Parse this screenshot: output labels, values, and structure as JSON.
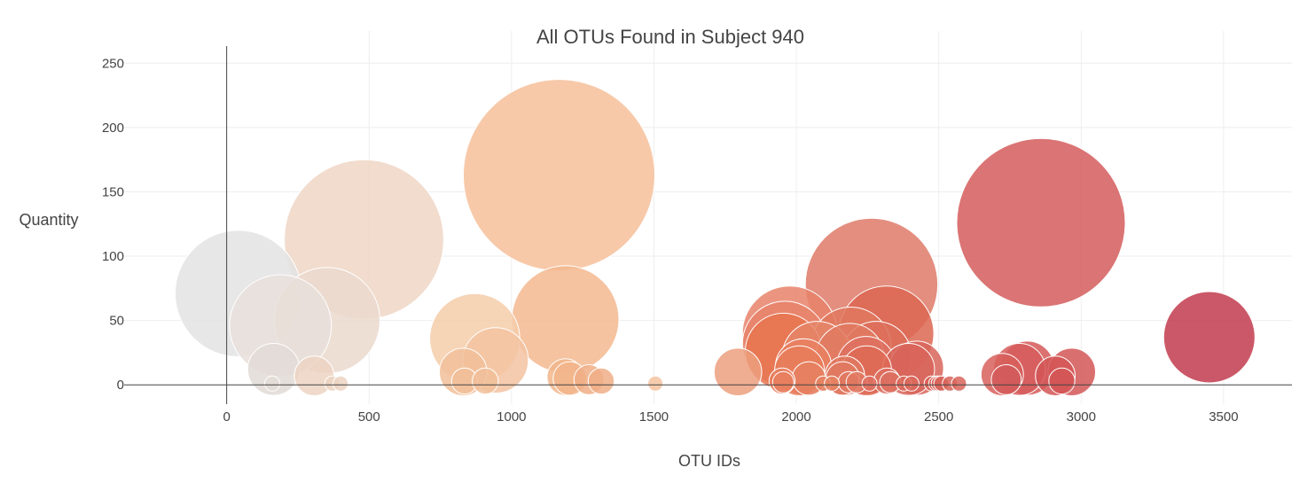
{
  "chart_data": {
    "type": "scatter",
    "title": "All OTUs Found in Subject 940",
    "xlabel": "OTU IDs",
    "ylabel": "Quantity",
    "xlim": [
      -360,
      3740
    ],
    "ylim": [
      -15,
      275
    ],
    "x_ticks": [
      0,
      500,
      1000,
      1500,
      2000,
      2500,
      3000,
      3500
    ],
    "y_ticks": [
      0,
      50,
      100,
      150,
      200,
      250
    ],
    "grid": true,
    "legend": "none",
    "size_note": "bubble size proportional to quantity",
    "colorscale": [
      "#e6e6e6",
      "#f1d2be",
      "#f6b890",
      "#e88a6e",
      "#d85c5c",
      "#c23a4d"
    ],
    "points": [
      {
        "x": 41,
        "y": 71,
        "color": "#e3e3e3"
      },
      {
        "x": 189,
        "y": 46,
        "color": "#e8dfdb"
      },
      {
        "x": 352,
        "y": 50,
        "color": "#ebd9ce"
      },
      {
        "x": 482,
        "y": 113,
        "color": "#efd6c4"
      },
      {
        "x": 1167,
        "y": 163,
        "color": "#f6bf9a"
      },
      {
        "x": 871,
        "y": 36,
        "color": "#f4cca9"
      },
      {
        "x": 944,
        "y": 19,
        "color": "#f3c3a1"
      },
      {
        "x": 1189,
        "y": 51,
        "color": "#f3b98f"
      },
      {
        "x": 2264,
        "y": 78,
        "color": "#de7a68"
      },
      {
        "x": 2859,
        "y": 126,
        "color": "#d55c5c"
      },
      {
        "x": 3450,
        "y": 37,
        "color": "#c23b4e"
      },
      {
        "x": 1977,
        "y": 40,
        "color": "#e8826a"
      },
      {
        "x": 1960,
        "y": 32,
        "color": "#e8826a"
      },
      {
        "x": 1955,
        "y": 26,
        "color": "#e8744f"
      },
      {
        "x": 2316,
        "y": 40,
        "color": "#dc6651"
      },
      {
        "x": 2191,
        "y": 29,
        "color": "#e0785e"
      },
      {
        "x": 2188,
        "y": 21,
        "color": "#e07a60"
      },
      {
        "x": 2281,
        "y": 22,
        "color": "#dc6f5b"
      },
      {
        "x": 2074,
        "y": 22,
        "color": "#e58568"
      },
      {
        "x": 2025,
        "y": 14,
        "color": "#e88060"
      },
      {
        "x": 2245,
        "y": 15,
        "color": "#de7060"
      },
      {
        "x": 2247,
        "y": 11,
        "color": "#de6a55"
      },
      {
        "x": 2394,
        "y": 12,
        "color": "#d8655a"
      },
      {
        "x": 2422,
        "y": 13,
        "color": "#d8655a"
      },
      {
        "x": 2011,
        "y": 11,
        "color": "#e77c5c"
      },
      {
        "x": 165,
        "y": 12,
        "color": "#e2dad6"
      },
      {
        "x": 830,
        "y": 10,
        "color": "#f1c09a"
      },
      {
        "x": 1795,
        "y": 10,
        "color": "#ec9f7e"
      },
      {
        "x": 2783,
        "y": 12,
        "color": "#d75c5c"
      },
      {
        "x": 2811,
        "y": 13,
        "color": "#d55858"
      },
      {
        "x": 2967,
        "y": 10,
        "color": "#d35656"
      },
      {
        "x": 2723,
        "y": 8,
        "color": "#d8605c"
      },
      {
        "x": 2909,
        "y": 7,
        "color": "#d35656"
      },
      {
        "x": 307,
        "y": 7,
        "color": "#ecd3c2"
      },
      {
        "x": 1189,
        "y": 6,
        "color": "#f2b58b"
      },
      {
        "x": 1205,
        "y": 5,
        "color": "#f2b58b"
      },
      {
        "x": 2170,
        "y": 7,
        "color": "#e07860"
      },
      {
        "x": 2163,
        "y": 5,
        "color": "#e07860"
      },
      {
        "x": 2044,
        "y": 5,
        "color": "#e58060"
      },
      {
        "x": 1272,
        "y": 4,
        "color": "#f0ae86"
      },
      {
        "x": 1315,
        "y": 3,
        "color": "#f0ae86"
      },
      {
        "x": 2737,
        "y": 4,
        "color": "#d45a5a"
      },
      {
        "x": 2932,
        "y": 3,
        "color": "#d35656"
      },
      {
        "x": 835,
        "y": 3,
        "color": "#f1c09a"
      },
      {
        "x": 908,
        "y": 3,
        "color": "#f1c09a"
      },
      {
        "x": 2318,
        "y": 3,
        "color": "#dd7060"
      },
      {
        "x": 2330,
        "y": 2,
        "color": "#dd7060"
      },
      {
        "x": 1950,
        "y": 3,
        "color": "#e87f5f"
      },
      {
        "x": 1954,
        "y": 2,
        "color": "#e87f5f"
      },
      {
        "x": 2184,
        "y": 2,
        "color": "#e07860"
      },
      {
        "x": 2212,
        "y": 2,
        "color": "#e07860"
      },
      {
        "x": 2094,
        "y": 1,
        "color": "#e58262"
      },
      {
        "x": 2125,
        "y": 1,
        "color": "#e58262"
      },
      {
        "x": 2257,
        "y": 1,
        "color": "#de7060"
      },
      {
        "x": 2377,
        "y": 1,
        "color": "#da6a5c"
      },
      {
        "x": 2404,
        "y": 1,
        "color": "#da6a5c"
      },
      {
        "x": 2475,
        "y": 1,
        "color": "#d8655a"
      },
      {
        "x": 2491,
        "y": 1,
        "color": "#d8655a"
      },
      {
        "x": 2500,
        "y": 1,
        "color": "#d8655a"
      },
      {
        "x": 2509,
        "y": 1,
        "color": "#d8655a"
      },
      {
        "x": 2539,
        "y": 1,
        "color": "#d8655a"
      },
      {
        "x": 2571,
        "y": 1,
        "color": "#d8655a"
      },
      {
        "x": 160,
        "y": 1,
        "color": "#e2dad6"
      },
      {
        "x": 371,
        "y": 1,
        "color": "#ecd3c2"
      },
      {
        "x": 400,
        "y": 1,
        "color": "#ecd3c2"
      },
      {
        "x": 1505,
        "y": 1,
        "color": "#f4c3a0"
      }
    ]
  }
}
